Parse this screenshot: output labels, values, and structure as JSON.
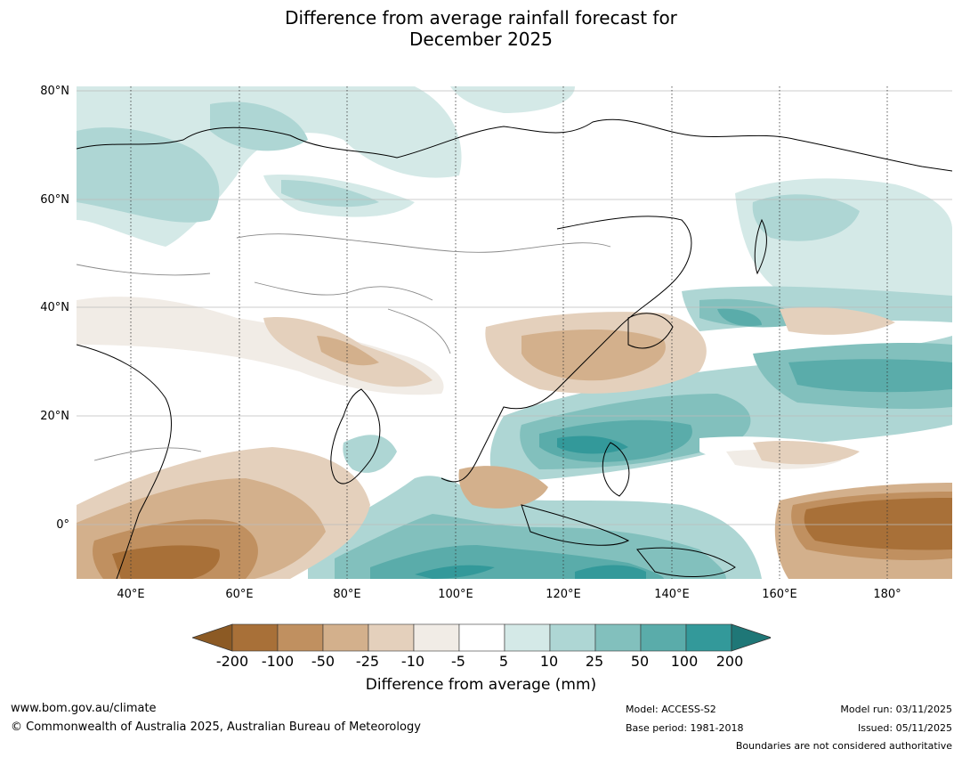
{
  "title_line1": "Difference from average rainfall forecast for",
  "title_line2": "December 2025",
  "lat_labels": [
    "80°N",
    "60°N",
    "40°N",
    "20°N",
    "0°"
  ],
  "lon_labels": [
    "40°E",
    "60°E",
    "80°E",
    "100°E",
    "120°E",
    "140°E",
    "160°E",
    "180°"
  ],
  "colorbar": {
    "ticks": [
      "-200",
      "-100",
      "-50",
      "-25",
      "-10",
      "-5",
      "5",
      "10",
      "25",
      "50",
      "100",
      "200"
    ],
    "colors": [
      "#8c5a24",
      "#a87038",
      "#c09060",
      "#d3b08c",
      "#e4d0bc",
      "#f1ece6",
      "#ffffff",
      "#d4e9e7",
      "#aed6d4",
      "#82c0bd",
      "#5aacaa",
      "#33999a",
      "#1f7777"
    ],
    "label": "Difference from average (mm)"
  },
  "footer": {
    "website": "www.bom.gov.au/climate",
    "copyright": "© Commonwealth of Australia 2025, Australian Bureau of Meteorology",
    "model": "Model: ACCESS-S2",
    "base_period": "Base period: 1981-2018",
    "model_run": "Model run: 03/11/2025",
    "issued": "Issued: 05/11/2025",
    "boundaries_note": "Boundaries are not considered authoritative"
  }
}
